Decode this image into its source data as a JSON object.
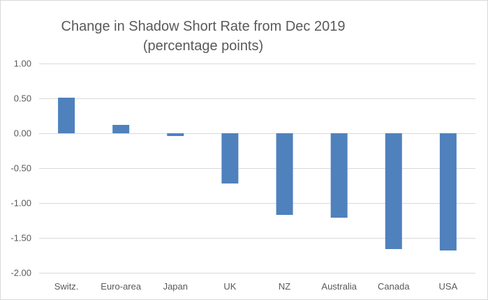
{
  "chart_data": {
    "type": "bar",
    "title": "Change in Shadow Short Rate from Dec 2019",
    "subtitle": "(percentage points)",
    "categories": [
      "Switz.",
      "Euro-area",
      "Japan",
      "UK",
      "NZ",
      "Australia",
      "Canada",
      "USA"
    ],
    "values": [
      0.51,
      0.12,
      -0.04,
      -0.72,
      -1.17,
      -1.21,
      -1.66,
      -1.68
    ],
    "xlabel": "",
    "ylabel": "",
    "ylim": [
      -2.0,
      1.0
    ],
    "yticks": [
      "1.00",
      "0.50",
      "0.00",
      "-0.50",
      "-1.00",
      "-1.50",
      "-2.00"
    ],
    "ytick_values": [
      1.0,
      0.5,
      0.0,
      -0.5,
      -1.0,
      -1.5,
      -2.0
    ],
    "grid": true,
    "legend": "none",
    "bar_color": "#4f81bd",
    "grid_color": "#d9d9d9",
    "text_color": "#595959"
  }
}
